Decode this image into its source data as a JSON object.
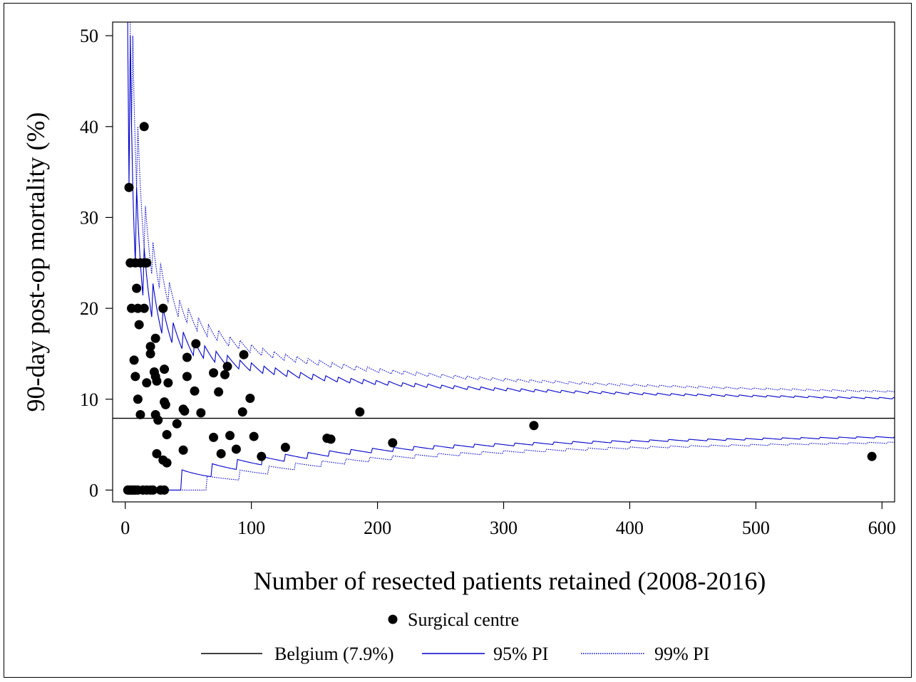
{
  "chart_data": {
    "type": "scatter",
    "title": "",
    "xlabel": "Number of resected patients retained (2008-2016)",
    "ylabel": "90-day post-op mortality (%)",
    "xlim": [
      -10,
      610
    ],
    "ylim": [
      -1.3,
      51.5
    ],
    "xticks": [
      0,
      100,
      200,
      300,
      400,
      500,
      600
    ],
    "yticks": [
      0,
      10,
      20,
      30,
      40,
      50
    ],
    "grid": false,
    "legend": {
      "position": "bottom",
      "row1": [
        {
          "label": "Surgical centre",
          "kind": "point"
        }
      ],
      "row2": [
        {
          "label": "Belgium (7.9%)",
          "kind": "line",
          "color": "#000000",
          "dash": "solid"
        },
        {
          "label": "95% PI",
          "kind": "line",
          "color": "#0000cc",
          "dash": "solid"
        },
        {
          "label": "99% PI",
          "kind": "line",
          "color": "#0000cc",
          "dash": "dotted"
        }
      ]
    },
    "reference_rate": 7.9,
    "series": [
      {
        "name": "Surgical centre",
        "kind": "points",
        "color": "#000000",
        "points": [
          [
            3,
            33.3
          ],
          [
            15,
            40.0
          ],
          [
            4,
            25.0
          ],
          [
            8,
            25.0
          ],
          [
            12,
            25.0
          ],
          [
            15,
            25.0
          ],
          [
            17,
            25.0
          ],
          [
            9,
            22.2
          ],
          [
            5,
            20.0
          ],
          [
            10,
            20.0
          ],
          [
            15,
            20.0
          ],
          [
            30,
            20.0
          ],
          [
            11,
            18.2
          ],
          [
            24,
            16.7
          ],
          [
            56,
            16.1
          ],
          [
            20,
            15.8
          ],
          [
            20,
            15.0
          ],
          [
            49,
            14.6
          ],
          [
            94,
            14.9
          ],
          [
            7,
            14.3
          ],
          [
            81,
            13.6
          ],
          [
            31,
            13.3
          ],
          [
            23,
            13.0
          ],
          [
            70,
            12.9
          ],
          [
            79,
            12.7
          ],
          [
            8,
            12.5
          ],
          [
            24,
            12.5
          ],
          [
            49,
            12.5
          ],
          [
            25,
            12.0
          ],
          [
            17,
            11.8
          ],
          [
            34,
            11.8
          ],
          [
            55,
            10.9
          ],
          [
            74,
            10.8
          ],
          [
            99,
            10.1
          ],
          [
            10,
            10.0
          ],
          [
            31,
            9.7
          ],
          [
            32,
            9.4
          ],
          [
            46,
            8.9
          ],
          [
            47,
            8.7
          ],
          [
            93,
            8.6
          ],
          [
            186,
            8.6
          ],
          [
            60,
            8.5
          ],
          [
            12,
            8.3
          ],
          [
            24,
            8.3
          ],
          [
            26,
            7.7
          ],
          [
            41,
            7.3
          ],
          [
            324,
            7.1
          ],
          [
            33,
            6.1
          ],
          [
            83,
            6.0
          ],
          [
            102,
            5.9
          ],
          [
            70,
            5.8
          ],
          [
            160,
            5.7
          ],
          [
            163,
            5.6
          ],
          [
            212,
            5.2
          ],
          [
            127,
            4.7
          ],
          [
            88,
            4.5
          ],
          [
            46,
            4.4
          ],
          [
            25,
            4.0
          ],
          [
            76,
            4.0
          ],
          [
            108,
            3.7
          ],
          [
            592,
            3.7
          ],
          [
            30,
            3.3
          ],
          [
            33,
            3.0
          ],
          [
            2,
            0.0
          ],
          [
            3,
            0.0
          ],
          [
            4,
            0.0
          ],
          [
            5,
            0.0
          ],
          [
            6,
            0.0
          ],
          [
            7,
            0.0
          ],
          [
            8,
            0.0
          ],
          [
            10,
            0.0
          ],
          [
            14,
            0.0
          ],
          [
            17,
            0.0
          ],
          [
            20,
            0.0
          ],
          [
            22,
            0.0
          ],
          [
            28,
            0.0
          ],
          [
            31,
            0.0
          ]
        ]
      },
      {
        "name": "Belgium (7.9%)",
        "kind": "reference",
        "color": "#000000",
        "dash": "solid",
        "y": 7.9
      },
      {
        "name": "95% PI",
        "kind": "interval",
        "color": "#0000cc",
        "dash": "solid",
        "level": 0.95
      },
      {
        "name": "99% PI",
        "kind": "interval",
        "color": "#0000cc",
        "dash": "dotted",
        "level": 0.99
      }
    ]
  }
}
